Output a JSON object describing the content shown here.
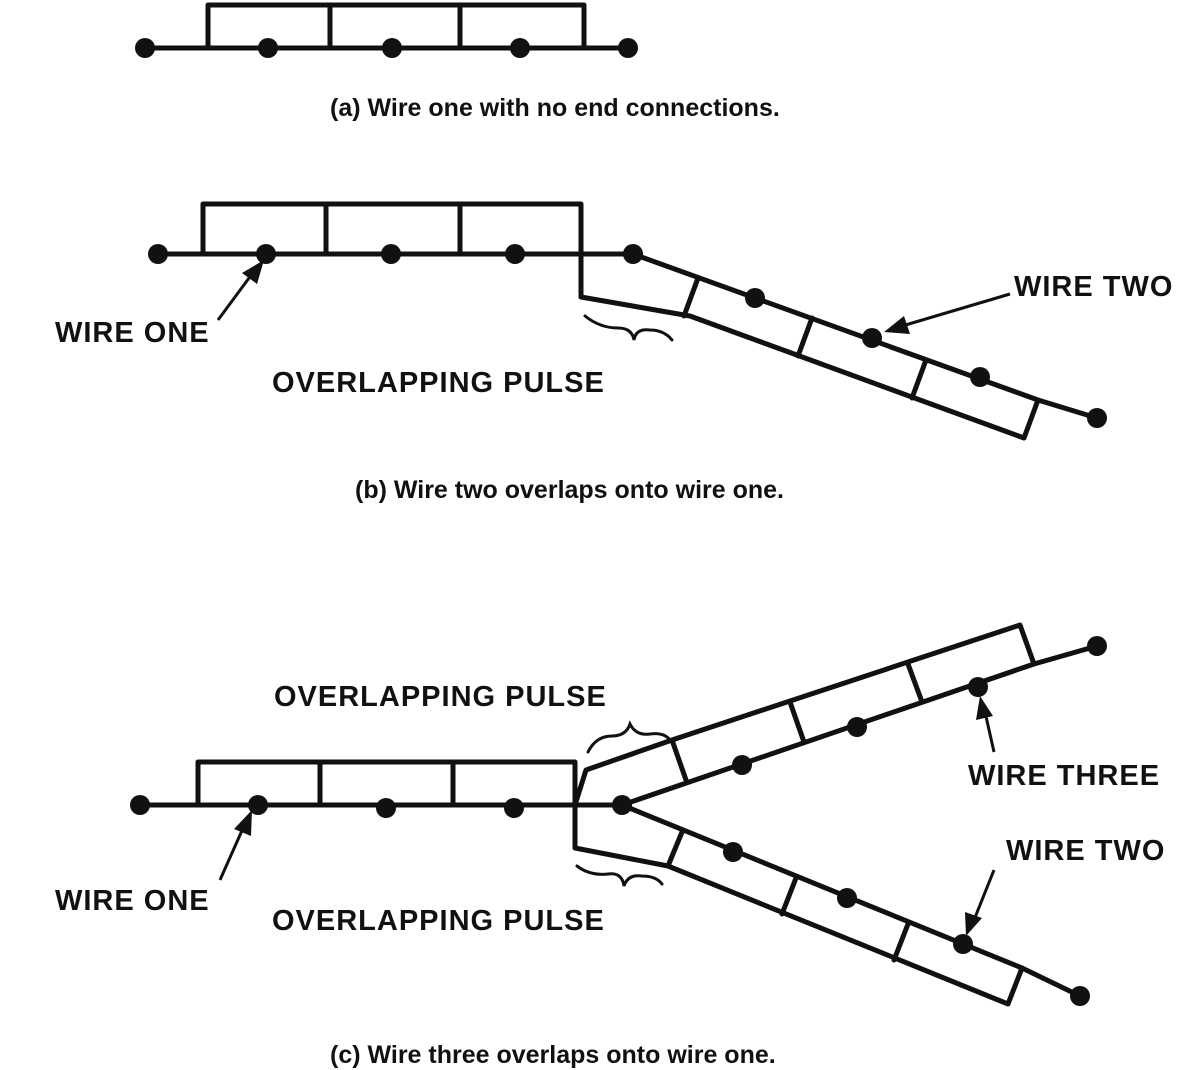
{
  "figure": {
    "panel_a": {
      "caption": "(a)  Wire one with no end connections."
    },
    "panel_b": {
      "caption": "(b)  Wire two overlaps onto wire one.",
      "wire_one_label": "WIRE ONE",
      "wire_two_label": "WIRE TWO",
      "overlap_label": "OVERLAPPING PULSE"
    },
    "panel_c": {
      "caption": "(c)  Wire three overlaps onto wire one.",
      "wire_one_label": "WIRE ONE",
      "wire_two_label": "WIRE TWO",
      "wire_three_label": "WIRE THREE",
      "overlap_label_top": "OVERLAPPING PULSE",
      "overlap_label_bottom": "OVERLAPPING PULSE"
    },
    "colors": {
      "ink": "#111111",
      "background": "#ffffff"
    }
  }
}
